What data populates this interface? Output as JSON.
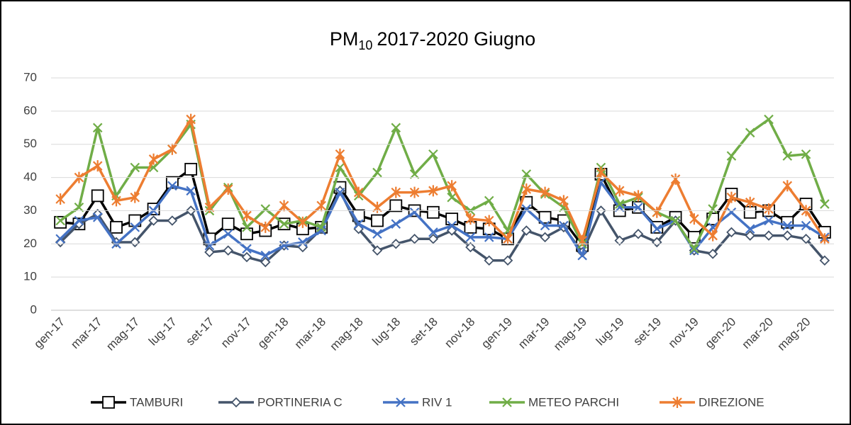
{
  "chart_data": {
    "type": "line",
    "title": "PM",
    "title_subscript": "10",
    "title_rest": "2017-2020 Giugno",
    "categories": [
      "gen-17",
      null,
      "mar-17",
      null,
      "mag-17",
      null,
      "lug-17",
      null,
      "set-17",
      null,
      "nov-17",
      null,
      "gen-18",
      null,
      "mar-18",
      null,
      "mag-18",
      null,
      "lug-18",
      null,
      "set-18",
      null,
      "nov-18",
      null,
      "gen-19",
      null,
      "mar-19",
      null,
      "mag-19",
      null,
      "lug-19",
      null,
      "set-19",
      null,
      "nov-19",
      null,
      "gen-20",
      null,
      "mar-20",
      null,
      "mag-20",
      null
    ],
    "ylim": [
      0,
      70
    ],
    "yticks": [
      0,
      10,
      20,
      30,
      40,
      50,
      60,
      70
    ],
    "grid": true,
    "legend": "bottom",
    "series": [
      {
        "name": "TAMBURI",
        "color": "#000000",
        "marker": "square",
        "values": [
          26.5,
          26,
          34.5,
          25,
          27,
          30.5,
          38.5,
          42.5,
          21.5,
          26,
          23,
          24,
          26,
          24.5,
          25,
          37,
          28.5,
          27,
          31.5,
          30,
          29.5,
          27.5,
          25,
          24.5,
          21.5,
          32.5,
          28,
          27,
          19.5,
          41,
          30,
          31,
          25,
          28,
          22,
          27.5,
          35,
          29.5,
          30,
          26.5,
          32,
          23.5
        ]
      },
      {
        "name": "PORTINERIA C",
        "color": "#44546a",
        "marker": "diamond",
        "values": [
          20.5,
          26,
          29,
          20.5,
          20.5,
          27,
          27,
          30,
          17.5,
          18,
          16,
          14.5,
          19.5,
          19,
          24.5,
          36,
          24.5,
          18,
          20,
          21.5,
          21.5,
          24,
          19,
          15,
          15,
          24,
          22,
          25,
          17.5,
          30,
          21,
          23,
          20.5,
          27,
          18,
          17,
          23.5,
          22.5,
          22.5,
          22.5,
          21.5,
          15
        ]
      },
      {
        "name": "RIV 1",
        "color": "#4472c4",
        "marker": "x",
        "values": [
          21.5,
          27,
          28,
          20,
          25,
          30,
          37.5,
          36,
          19.5,
          23,
          18.5,
          16.5,
          19.5,
          20.5,
          24,
          35.5,
          26,
          23,
          26,
          29.5,
          23.5,
          25.5,
          22,
          22,
          21.5,
          30.5,
          25.5,
          25.5,
          16.5,
          38.5,
          31,
          31,
          24.5,
          27,
          18,
          25,
          29.5,
          24.5,
          27,
          25.5,
          25.5,
          22
        ]
      },
      {
        "name": "METEO PARCHI",
        "color": "#70ad47",
        "marker": "x",
        "values": [
          27,
          31,
          55,
          34.5,
          43,
          43,
          48.5,
          56,
          30,
          37,
          25,
          30.5,
          26,
          27,
          25,
          43,
          34.5,
          41.5,
          55,
          41,
          47,
          34,
          30,
          33,
          24,
          41,
          35,
          31,
          20,
          43,
          32,
          34,
          29.5,
          27,
          18.5,
          30.5,
          46.5,
          53.5,
          57.5,
          46.5,
          47,
          32
        ]
      },
      {
        "name": "DIREZIONE",
        "color": "#ed7d31",
        "marker": "star",
        "values": [
          33.5,
          40,
          43.5,
          33,
          34,
          45.5,
          48.5,
          57.5,
          31,
          36.5,
          28.5,
          25,
          31.5,
          26.5,
          31.5,
          47,
          35.5,
          31,
          35.5,
          35.5,
          36,
          37.5,
          27.5,
          27,
          21.5,
          36.5,
          35.5,
          33,
          21,
          41.5,
          36,
          34.5,
          29.5,
          39.5,
          27.5,
          22.5,
          34,
          32.5,
          30.5,
          37.5,
          30,
          21.5
        ]
      }
    ]
  }
}
